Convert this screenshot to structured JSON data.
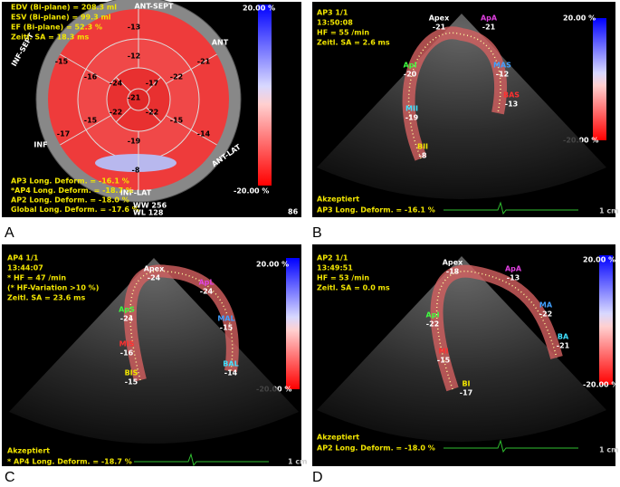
{
  "panels": [
    {
      "letter": "A",
      "info": [
        "EDV (Bi-plane) = 208.3 ml",
        "ESV (Bi-plane) = 99.3 ml",
        "EF (Bi-plane) = 52.3 %",
        "Zeitl. SA = 18.3 ms"
      ],
      "regions": [
        "ANT-SEPT",
        "ANT",
        "ANT-LAT",
        "INF-LAT",
        "INF",
        "INF-SEPT"
      ],
      "segments": [
        "-13",
        "-21",
        "-14",
        "-8",
        "-17",
        "-15",
        "-12",
        "-22",
        "-15",
        "-19",
        "-15",
        "-16",
        "-17",
        "-22",
        "-22",
        "-24",
        "-21"
      ],
      "scale": [
        "20.00 %",
        "-20.00 %"
      ],
      "results": [
        "AP3 Long. Deform. = -16.1 %",
        "*AP4 Long. Deform. = -18.7 %",
        "AP2 Long. Deform. = -18.0 %",
        "Global Long. Deform. = -17.6 %"
      ],
      "window": [
        "WW 256",
        "WL 128"
      ],
      "frame": "86"
    },
    {
      "letter": "B",
      "info": [
        "AP3 1/1",
        "13:50:08",
        "HF = 55 /min",
        "Zeitl. SA = 2.6 ms"
      ],
      "points": [
        {
          "name": "Apex",
          "value": "-21"
        },
        {
          "name": "ApA",
          "value": "-21"
        },
        {
          "name": "ApI",
          "value": "-20"
        },
        {
          "name": "MAS",
          "value": "-12"
        },
        {
          "name": "BAS",
          "value": "-13"
        },
        {
          "name": "MII",
          "value": "-19"
        },
        {
          "name": "BII",
          "value": "-8"
        }
      ],
      "scale": [
        "20.00 %",
        "-20.00 %"
      ],
      "status": "Akzeptiert",
      "result": "AP3 Long. Deform. = -16.1 %",
      "ruler": "1 cm"
    },
    {
      "letter": "C",
      "info": [
        "AP4 1/1",
        "13:44:07",
        "* HF = 47 /min",
        "(* HF-Variation >10 %)",
        "Zeitl. SA = 23.6 ms"
      ],
      "points": [
        {
          "name": "Apex",
          "value": "-24"
        },
        {
          "name": "ApL",
          "value": "-24"
        },
        {
          "name": "ApS",
          "value": "-24"
        },
        {
          "name": "MAL",
          "value": "-15"
        },
        {
          "name": "MIS",
          "value": "-16"
        },
        {
          "name": "BAL",
          "value": "-14"
        },
        {
          "name": "BIS",
          "value": "-15"
        }
      ],
      "scale": [
        "20.00 %",
        "-20.00 %"
      ],
      "status": "Akzeptiert",
      "result": "* AP4 Long. Deform. = -18.7 %",
      "ruler": "1 cm"
    },
    {
      "letter": "D",
      "info": [
        "AP2 1/1",
        "13:49:51",
        "HF = 53 /min",
        "Zeitl. SA = 0.0 ms"
      ],
      "points": [
        {
          "name": "Apex",
          "value": "-18"
        },
        {
          "name": "ApA",
          "value": "-13"
        },
        {
          "name": "ApI",
          "value": "-22"
        },
        {
          "name": "MA",
          "value": "-22"
        },
        {
          "name": "MI",
          "value": "-15"
        },
        {
          "name": "BA",
          "value": "-21"
        },
        {
          "name": "BI",
          "value": "-17"
        }
      ],
      "scale": [
        "20.00 %",
        "-20.00 %"
      ],
      "status": "Akzeptiert",
      "result": "AP2 Long. Deform. = -18.0 %",
      "ruler": "1 cm"
    }
  ]
}
